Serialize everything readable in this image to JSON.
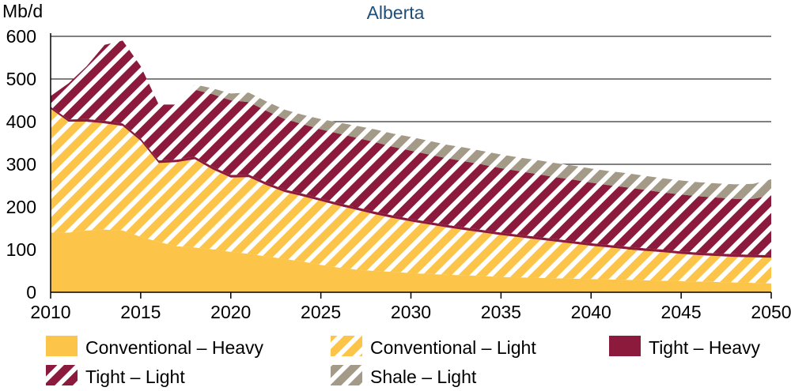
{
  "chart_data": {
    "type": "area",
    "stacked": true,
    "title": "Alberta",
    "ylabel": "Mb/d",
    "xlabel": "",
    "ylim": [
      0,
      600
    ],
    "yticks": [
      0,
      100,
      200,
      300,
      400,
      500,
      600
    ],
    "xlim": [
      2010,
      2050
    ],
    "xticks": [
      2010,
      2015,
      2020,
      2025,
      2030,
      2035,
      2040,
      2045,
      2050
    ],
    "grid": "horizontal",
    "legend_position": "bottom",
    "x": [
      2010,
      2011,
      2012,
      2013,
      2014,
      2015,
      2016,
      2017,
      2018,
      2019,
      2020,
      2021,
      2022,
      2023,
      2024,
      2025,
      2026,
      2027,
      2028,
      2029,
      2030,
      2031,
      2032,
      2033,
      2034,
      2035,
      2036,
      2037,
      2038,
      2039,
      2040,
      2041,
      2042,
      2043,
      2044,
      2045,
      2046,
      2047,
      2048,
      2049,
      2050
    ],
    "series": [
      {
        "name": "Conventional – Heavy",
        "color": "#fcc549",
        "pattern": "solid",
        "values": [
          140,
          140,
          145,
          147,
          145,
          130,
          118,
          108,
          105,
          100,
          95,
          90,
          84,
          78,
          72,
          64,
          58,
          53,
          50,
          48,
          45,
          43,
          41,
          40,
          38,
          36,
          35,
          34,
          33,
          32,
          31,
          30,
          29,
          28,
          27,
          26,
          25,
          24,
          23,
          22,
          21
        ]
      },
      {
        "name": "Conventional – Light",
        "color": "#fcc549",
        "pattern": "hatch",
        "values": [
          290,
          260,
          255,
          249,
          245,
          225,
          185,
          197,
          207,
          188,
          174,
          180,
          167,
          157,
          153,
          150,
          145,
          140,
          133,
          126,
          121,
          116,
          111,
          106,
          102,
          98,
          94,
          90,
          86,
          82,
          78,
          75,
          72,
          69,
          67,
          64,
          62,
          61,
          60,
          60,
          60
        ]
      },
      {
        "name": "Tight – Heavy",
        "color": "#8b1a3c",
        "pattern": "solid",
        "values": [
          5,
          5,
          6,
          6,
          6,
          6,
          6,
          6,
          6,
          6,
          6,
          6,
          6,
          6,
          6,
          6,
          6,
          6,
          6,
          6,
          6,
          6,
          6,
          6,
          6,
          6,
          6,
          6,
          6,
          6,
          6,
          6,
          6,
          6,
          6,
          6,
          6,
          6,
          6,
          6,
          6
        ]
      },
      {
        "name": "Tight – Light",
        "color": "#8b1a3c",
        "pattern": "hatch",
        "values": [
          25,
          85,
          124,
          178,
          194,
          169,
          131,
          129,
          157,
          170,
          175,
          170,
          168,
          165,
          163,
          162,
          163,
          163,
          163,
          161,
          160,
          158,
          156,
          155,
          153,
          151,
          149,
          147,
          145,
          144,
          142,
          140,
          139,
          137,
          134,
          133,
          132,
          131,
          130,
          131,
          140
        ]
      },
      {
        "name": "Shale – Light",
        "color": "#a49a88",
        "pattern": "hatch",
        "values": [
          0,
          0,
          0,
          0,
          0,
          0,
          0,
          0,
          12,
          14,
          16,
          22,
          22,
          22,
          22,
          24,
          26,
          28,
          30,
          31,
          32,
          32,
          32,
          32,
          32,
          32,
          32,
          33,
          33,
          33,
          33,
          33,
          33,
          33,
          33,
          33,
          33,
          33,
          34,
          35,
          38
        ]
      }
    ]
  },
  "legend": {
    "items": [
      {
        "label": "Conventional – Heavy"
      },
      {
        "label": "Conventional – Light"
      },
      {
        "label": "Tight – Heavy"
      },
      {
        "label": "Tight – Light"
      },
      {
        "label": "Shale – Light"
      }
    ]
  }
}
